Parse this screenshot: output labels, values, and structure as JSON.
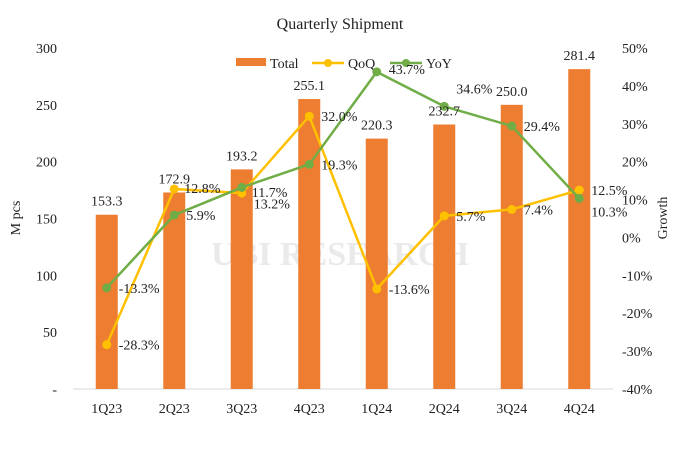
{
  "chart_data": {
    "type": "bar+line",
    "title": "Quarterly Shipment",
    "ylabel": "M pcs",
    "y2label": "Growth",
    "categories": [
      "1Q23",
      "2Q23",
      "3Q23",
      "4Q23",
      "1Q24",
      "2Q24",
      "3Q24",
      "4Q24"
    ],
    "ylim": [
      0,
      300
    ],
    "yticks": [
      "-",
      "50",
      "100",
      "150",
      "200",
      "250",
      "300"
    ],
    "y2lim": [
      -40,
      50
    ],
    "y2ticks": [
      "-40%",
      "-30%",
      "-20%",
      "-10%",
      "0%",
      "10%",
      "20%",
      "30%",
      "40%",
      "50%"
    ],
    "legend_position": "top",
    "grid": false,
    "series": [
      {
        "name": "Total",
        "type": "bar",
        "axis": "left",
        "color": "#ED7D31",
        "values": [
          153.3,
          172.9,
          193.2,
          255.1,
          220.3,
          232.7,
          250.0,
          281.4
        ],
        "labels": [
          "153.3",
          "172.9",
          "193.2",
          "255.1",
          "220.3",
          "232.7",
          "250.0",
          "281.4"
        ]
      },
      {
        "name": "QoQ",
        "type": "line",
        "axis": "right",
        "color": "#FFC000",
        "values": [
          -28.3,
          12.8,
          11.7,
          32.0,
          -13.6,
          5.7,
          7.4,
          12.5
        ],
        "labels": [
          "-28.3%",
          "12.8%",
          "11.7%",
          "32.0%",
          "-13.6%",
          "5.7%",
          "7.4%",
          "12.5%"
        ]
      },
      {
        "name": "YoY",
        "type": "line",
        "axis": "right",
        "color": "#70AD47",
        "values": [
          -13.3,
          5.9,
          13.2,
          19.3,
          43.7,
          34.6,
          29.4,
          10.3
        ],
        "labels": [
          "-13.3%",
          "5.9%",
          "13.2%",
          "19.3%",
          "43.7%",
          "34.6%",
          "29.4%",
          "10.3%"
        ]
      }
    ],
    "watermark": "UBI RESEARCH"
  }
}
